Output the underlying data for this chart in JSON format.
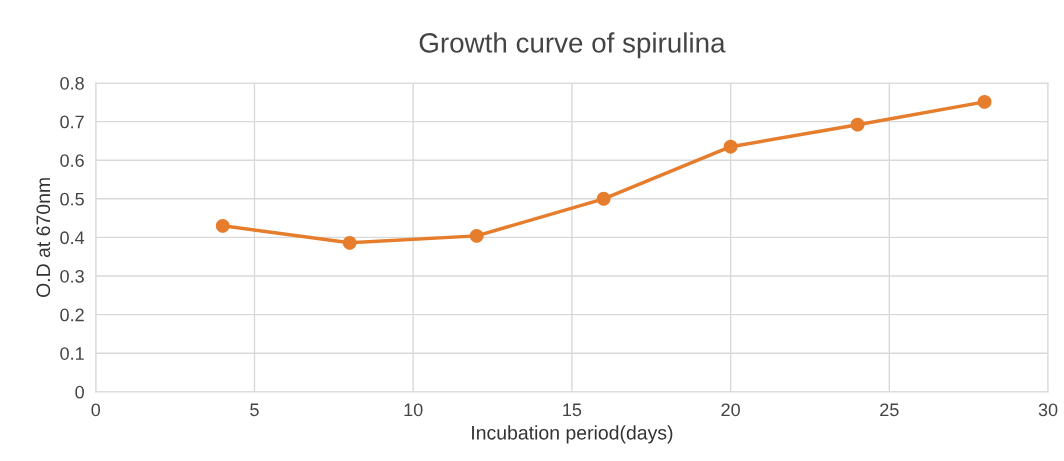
{
  "chart_data": {
    "type": "line",
    "title": "Growth curve of spirulina",
    "xlabel": "Incubation period(days)",
    "ylabel": "O.D at 670nm",
    "x": [
      4,
      8,
      12,
      16,
      20,
      24,
      28
    ],
    "series": [
      {
        "color": "#e57d2c",
        "values": [
          0.43,
          0.386,
          0.404,
          0.5,
          0.635,
          0.692,
          0.751
        ]
      }
    ],
    "xlim": [
      0,
      30
    ],
    "xticks": [
      0,
      5,
      10,
      15,
      20,
      25,
      30
    ],
    "ylim": [
      0,
      0.8
    ],
    "yticks": [
      {
        "value": 0,
        "label": "0"
      },
      0.1,
      0.2,
      0.3,
      0.4,
      0.5,
      0.6,
      0.7,
      0.8
    ],
    "grid": true,
    "marker": "circle",
    "line_style": "solid"
  }
}
